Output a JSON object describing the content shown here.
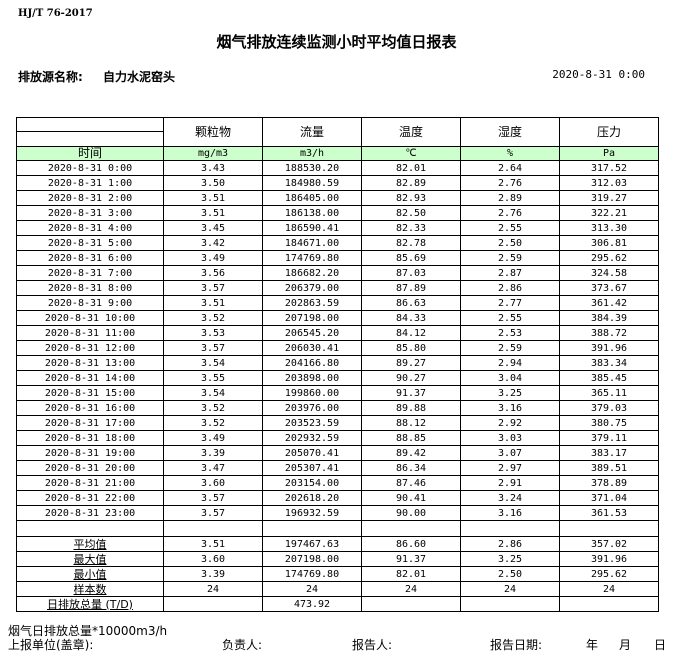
{
  "standard": "HJ/T  76-2017",
  "title": "烟气排放连续监测小时平均值日报表",
  "source_label": "排放源名称:",
  "source_name": "自力水泥窑头",
  "report_datetime": "2020-8-31 0:00",
  "columns": [
    "颗粒物",
    "流量",
    "温度",
    "湿度",
    "压力"
  ],
  "time_label": "时间",
  "units": [
    "mg/m3",
    "m3/h",
    "℃",
    "%",
    "Pa"
  ],
  "rows": [
    [
      "2020-8-31 0:00",
      "3.43",
      "188530.20",
      "82.01",
      "2.64",
      "317.52"
    ],
    [
      "2020-8-31 1:00",
      "3.50",
      "184980.59",
      "82.89",
      "2.76",
      "312.03"
    ],
    [
      "2020-8-31 2:00",
      "3.51",
      "186405.00",
      "82.93",
      "2.89",
      "319.27"
    ],
    [
      "2020-8-31 3:00",
      "3.51",
      "186138.00",
      "82.50",
      "2.76",
      "322.21"
    ],
    [
      "2020-8-31 4:00",
      "3.45",
      "186590.41",
      "82.33",
      "2.55",
      "313.30"
    ],
    [
      "2020-8-31 5:00",
      "3.42",
      "184671.00",
      "82.78",
      "2.50",
      "306.81"
    ],
    [
      "2020-8-31 6:00",
      "3.49",
      "174769.80",
      "85.69",
      "2.59",
      "295.62"
    ],
    [
      "2020-8-31 7:00",
      "3.56",
      "186682.20",
      "87.03",
      "2.87",
      "324.58"
    ],
    [
      "2020-8-31 8:00",
      "3.57",
      "206379.00",
      "87.89",
      "2.86",
      "373.67"
    ],
    [
      "2020-8-31 9:00",
      "3.51",
      "202863.59",
      "86.63",
      "2.77",
      "361.42"
    ],
    [
      "2020-8-31 10:00",
      "3.52",
      "207198.00",
      "84.33",
      "2.55",
      "384.39"
    ],
    [
      "2020-8-31 11:00",
      "3.53",
      "206545.20",
      "84.12",
      "2.53",
      "388.72"
    ],
    [
      "2020-8-31 12:00",
      "3.57",
      "206030.41",
      "85.80",
      "2.59",
      "391.96"
    ],
    [
      "2020-8-31 13:00",
      "3.54",
      "204166.80",
      "89.27",
      "2.94",
      "383.34"
    ],
    [
      "2020-8-31 14:00",
      "3.55",
      "203898.00",
      "90.27",
      "3.04",
      "385.45"
    ],
    [
      "2020-8-31 15:00",
      "3.54",
      "199860.00",
      "91.37",
      "3.25",
      "365.11"
    ],
    [
      "2020-8-31 16:00",
      "3.52",
      "203976.00",
      "89.88",
      "3.16",
      "379.03"
    ],
    [
      "2020-8-31 17:00",
      "3.52",
      "203523.59",
      "88.12",
      "2.92",
      "380.75"
    ],
    [
      "2020-8-31 18:00",
      "3.49",
      "202932.59",
      "88.85",
      "3.03",
      "379.11"
    ],
    [
      "2020-8-31 19:00",
      "3.39",
      "205070.41",
      "89.42",
      "3.07",
      "383.17"
    ],
    [
      "2020-8-31 20:00",
      "3.47",
      "205307.41",
      "86.34",
      "2.97",
      "389.51"
    ],
    [
      "2020-8-31 21:00",
      "3.60",
      "203154.00",
      "87.46",
      "2.91",
      "378.89"
    ],
    [
      "2020-8-31 22:00",
      "3.57",
      "202618.20",
      "90.41",
      "3.24",
      "371.04"
    ],
    [
      "2020-8-31 23:00",
      "3.57",
      "196932.59",
      "90.00",
      "3.16",
      "361.53"
    ]
  ],
  "summary": [
    [
      "平均值",
      "3.51",
      "197467.63",
      "86.60",
      "2.86",
      "357.02"
    ],
    [
      "最大值",
      "3.60",
      "207198.00",
      "91.37",
      "3.25",
      "391.96"
    ],
    [
      "最小值",
      "3.39",
      "174769.80",
      "82.01",
      "2.50",
      "295.62"
    ],
    [
      "样本数",
      "24",
      "24",
      "24",
      "24",
      "24"
    ],
    [
      "日排放总量 (T/D)",
      "",
      "473.92",
      "",
      "",
      ""
    ]
  ],
  "footer": {
    "note": "烟气日排放总量*10000m3/h",
    "unit_label": "上报单位(盖章):",
    "responsible_label": "负责人:",
    "reporter_label": "报告人:",
    "report_date_label": "报告日期:",
    "year": "年",
    "month": "月",
    "day": "日"
  },
  "colors": {
    "unit_row_bg": "#ccffcc"
  }
}
